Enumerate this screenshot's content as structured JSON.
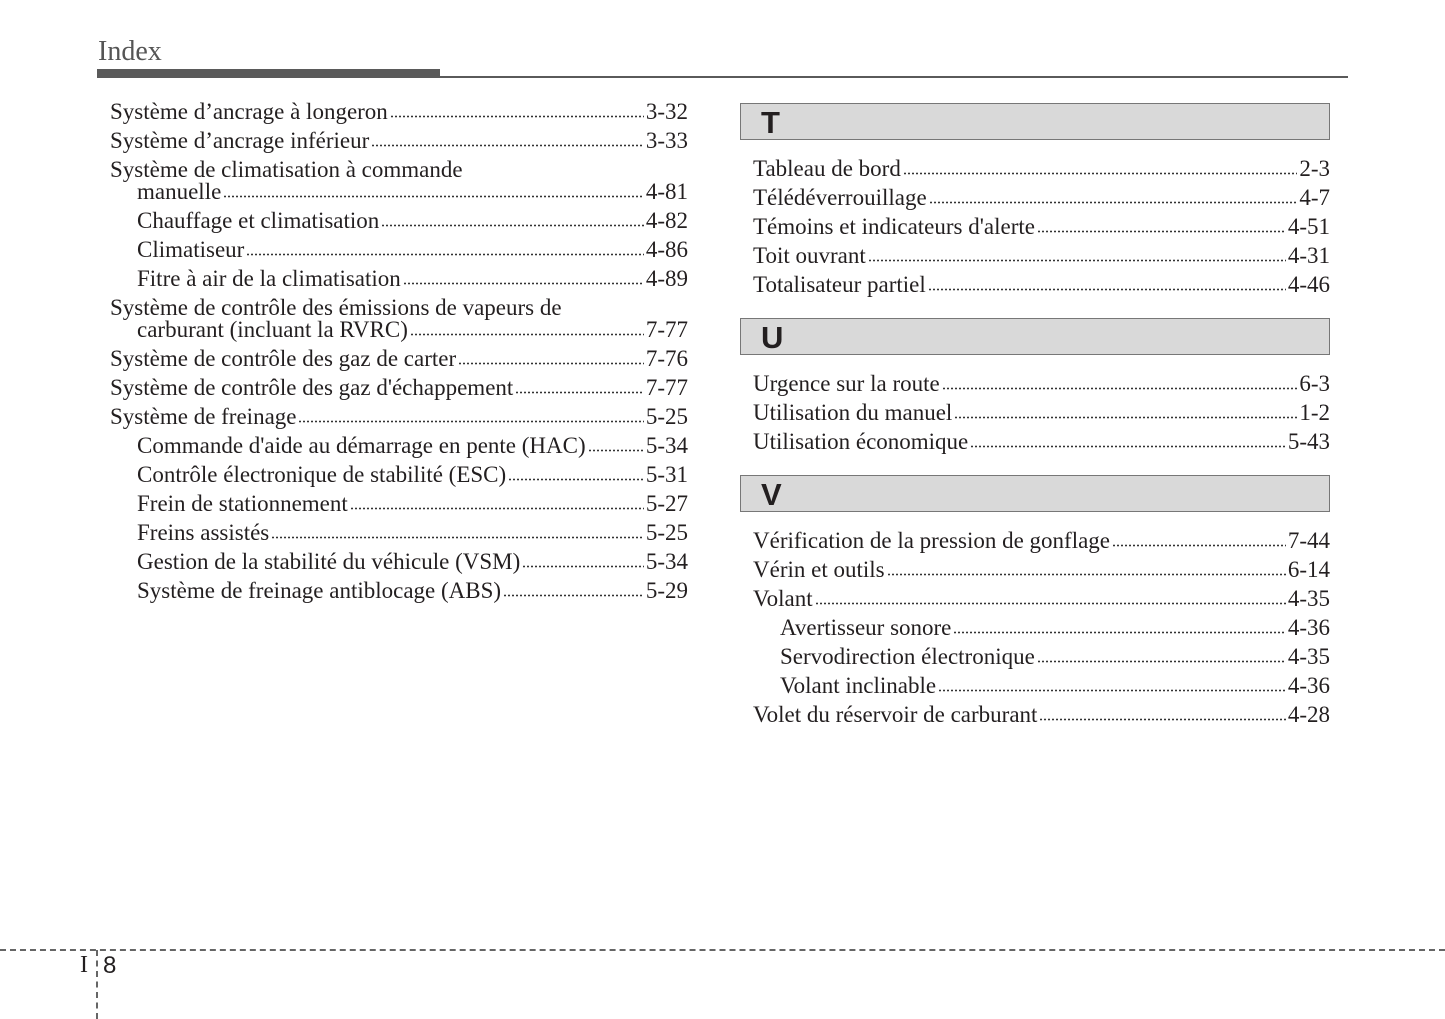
{
  "header": {
    "title": "Index"
  },
  "left_entries": [
    {
      "label": "Système d’ancrage à longeron",
      "page": "3-32",
      "sub": false
    },
    {
      "label": "Système d’ancrage inférieur",
      "page": "3-33",
      "sub": false
    },
    {
      "label_first": "Système de climatisation à commande",
      "label": "manuelle",
      "page": "4-81",
      "sub": false
    },
    {
      "label": "Chauffage et climatisation",
      "page": "4-82",
      "sub": true
    },
    {
      "label": "Climatiseur",
      "page": "4-86",
      "sub": true
    },
    {
      "label": "Fitre à air de la climatisation",
      "page": "4-89",
      "sub": true
    },
    {
      "label_first": "Système de contrôle des émissions de vapeurs de",
      "label": "carburant (incluant la RVRC)",
      "page": "7-77",
      "sub": false
    },
    {
      "label": "Système de contrôle des gaz de carter",
      "page": "7-76",
      "sub": false
    },
    {
      "label": "Système de contrôle des gaz d'échappement",
      "page": "7-77",
      "sub": false
    },
    {
      "label": "Système de freinage",
      "page": "5-25",
      "sub": false
    },
    {
      "label": "Commande d'aide au démarrage en pente (HAC)",
      "page": "5-34",
      "sub": true
    },
    {
      "label": "Contrôle électronique de stabilité (ESC)",
      "page": "5-31",
      "sub": true
    },
    {
      "label": "Frein de stationnement",
      "page": "5-27",
      "sub": true
    },
    {
      "label": "Freins assistés",
      "page": "5-25",
      "sub": true
    },
    {
      "label": "Gestion de la stabilité du véhicule (VSM)",
      "page": "5-34",
      "sub": true
    },
    {
      "label": "Système de freinage antiblocage (ABS)",
      "page": "5-29",
      "sub": true
    }
  ],
  "sections": [
    {
      "letter": "T",
      "entries": [
        {
          "label": "Tableau de bord",
          "page": "2-3",
          "sub": false
        },
        {
          "label": "Télédéverrouillage",
          "page": "4-7",
          "sub": false
        },
        {
          "label": "Témoins et indicateurs d'alerte",
          "page": "4-51",
          "sub": false
        },
        {
          "label": "Toit ouvrant",
          "page": "4-31",
          "sub": false
        },
        {
          "label": "Totalisateur partiel",
          "page": "4-46",
          "sub": false
        }
      ]
    },
    {
      "letter": "U",
      "entries": [
        {
          "label": "Urgence sur la route",
          "page": "6-3",
          "sub": false
        },
        {
          "label": "Utilisation du manuel",
          "page": "1-2",
          "sub": false
        },
        {
          "label": "Utilisation économique",
          "page": "5-43",
          "sub": false
        }
      ]
    },
    {
      "letter": "V",
      "entries": [
        {
          "label": "Vérification de la pression de gonflage",
          "page": "7-44",
          "sub": false
        },
        {
          "label": "Vérin et outils",
          "page": "6-14",
          "sub": false
        },
        {
          "label": "Volant",
          "page": "4-35",
          "sub": false
        },
        {
          "label": "Avertisseur sonore",
          "page": "4-36",
          "sub": true
        },
        {
          "label": "Servodirection électronique",
          "page": "4-35",
          "sub": true
        },
        {
          "label": "Volant inclinable",
          "page": "4-36",
          "sub": true
        },
        {
          "label": "Volet du réservoir de carburant",
          "page": "4-28",
          "sub": false
        }
      ]
    }
  ],
  "footer": {
    "section": "I",
    "page": "8"
  }
}
